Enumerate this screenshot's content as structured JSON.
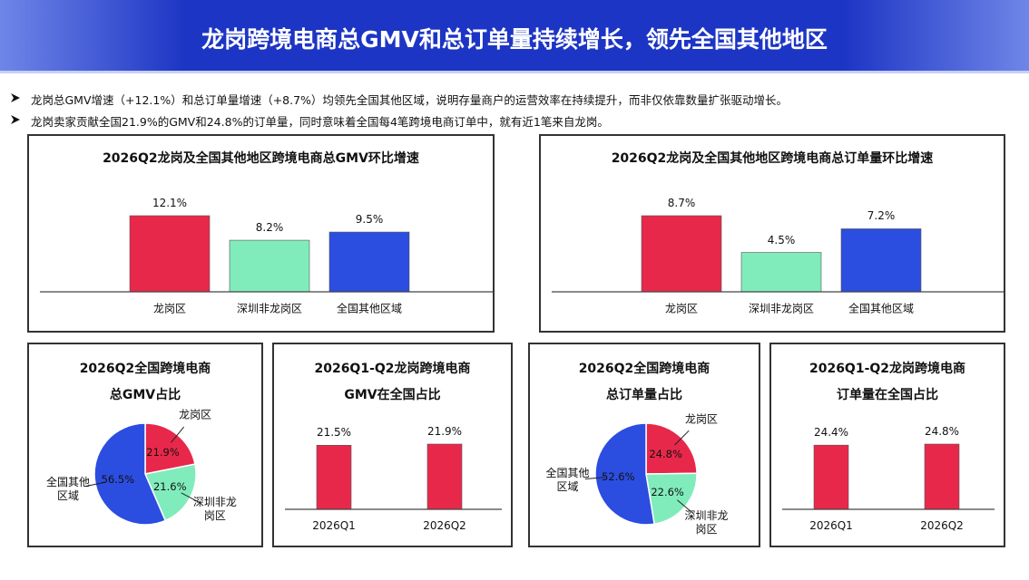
{
  "title": "龙岗跨境电商总GMV和总订单量持续增长，领先全国其他地区",
  "bullets": [
    "龙岗总GMV增速（+12.1%）和总订单量增速（+8.7%）均领先全国其他区域，说明存量商户的运营效率在持续提升，而非仅依靠数量扩张驱动增长。",
    "龙岗卖家贡献全国21.9%的GMV和24.8%的订单量，同时意味着全国每4笔跨境电商订单中，就有近1笔来自龙岗。"
  ],
  "chart_data": [
    {
      "type": "bar",
      "title": "2026Q2龙岗及全国其他地区跨境电商总GMV环比增速",
      "categories": [
        "龙岗区",
        "深圳非龙岗区",
        "全国其他区域"
      ],
      "values": [
        12.1,
        8.2,
        9.5
      ],
      "value_labels": [
        "12.1%",
        "8.2%",
        "9.5%"
      ],
      "colors": [
        "#e8284b",
        "#80ecbb",
        "#2b4de0"
      ]
    },
    {
      "type": "bar",
      "title": "2026Q2龙岗及全国其他地区跨境电商总订单量环比增速",
      "categories": [
        "龙岗区",
        "深圳非龙岗区",
        "全国其他区域"
      ],
      "values": [
        8.7,
        4.5,
        7.2
      ],
      "value_labels": [
        "8.7%",
        "4.5%",
        "7.2%"
      ],
      "colors": [
        "#e8284b",
        "#80ecbb",
        "#2b4de0"
      ]
    },
    {
      "type": "pie",
      "title": [
        "2026Q2全国跨境电商",
        "总GMV占比"
      ],
      "categories": [
        "龙岗区",
        "深圳非龙岗区",
        "全国其他区域"
      ],
      "values": [
        21.9,
        21.6,
        56.5
      ],
      "value_labels": [
        "21.9%",
        "21.6%",
        "56.5%"
      ],
      "colors": [
        "#e8284b",
        "#80ecbb",
        "#2b4de0"
      ]
    },
    {
      "type": "bar",
      "title": [
        "2026Q1-Q2龙岗跨境电商",
        "GMV在全国占比"
      ],
      "categories": [
        "2026Q1",
        "2026Q2"
      ],
      "values": [
        21.5,
        21.9
      ],
      "value_labels": [
        "21.5%",
        "21.9%"
      ],
      "colors": [
        "#e8284b",
        "#e8284b"
      ]
    },
    {
      "type": "pie",
      "title": [
        "2026Q2全国跨境电商",
        "总订单量占比"
      ],
      "categories": [
        "龙岗区",
        "深圳非龙岗区",
        "全国其他区域"
      ],
      "values": [
        24.8,
        22.6,
        52.6
      ],
      "value_labels": [
        "24.8%",
        "22.6%",
        "52.6%"
      ],
      "colors": [
        "#e8284b",
        "#80ecbb",
        "#2b4de0"
      ]
    },
    {
      "type": "bar",
      "title": [
        "2026Q1-Q2龙岗跨境电商",
        "订单量在全国占比"
      ],
      "categories": [
        "2026Q1",
        "2026Q2"
      ],
      "values": [
        24.4,
        24.8
      ],
      "value_labels": [
        "24.4%",
        "24.8%"
      ],
      "colors": [
        "#e8284b",
        "#e8284b"
      ]
    }
  ]
}
